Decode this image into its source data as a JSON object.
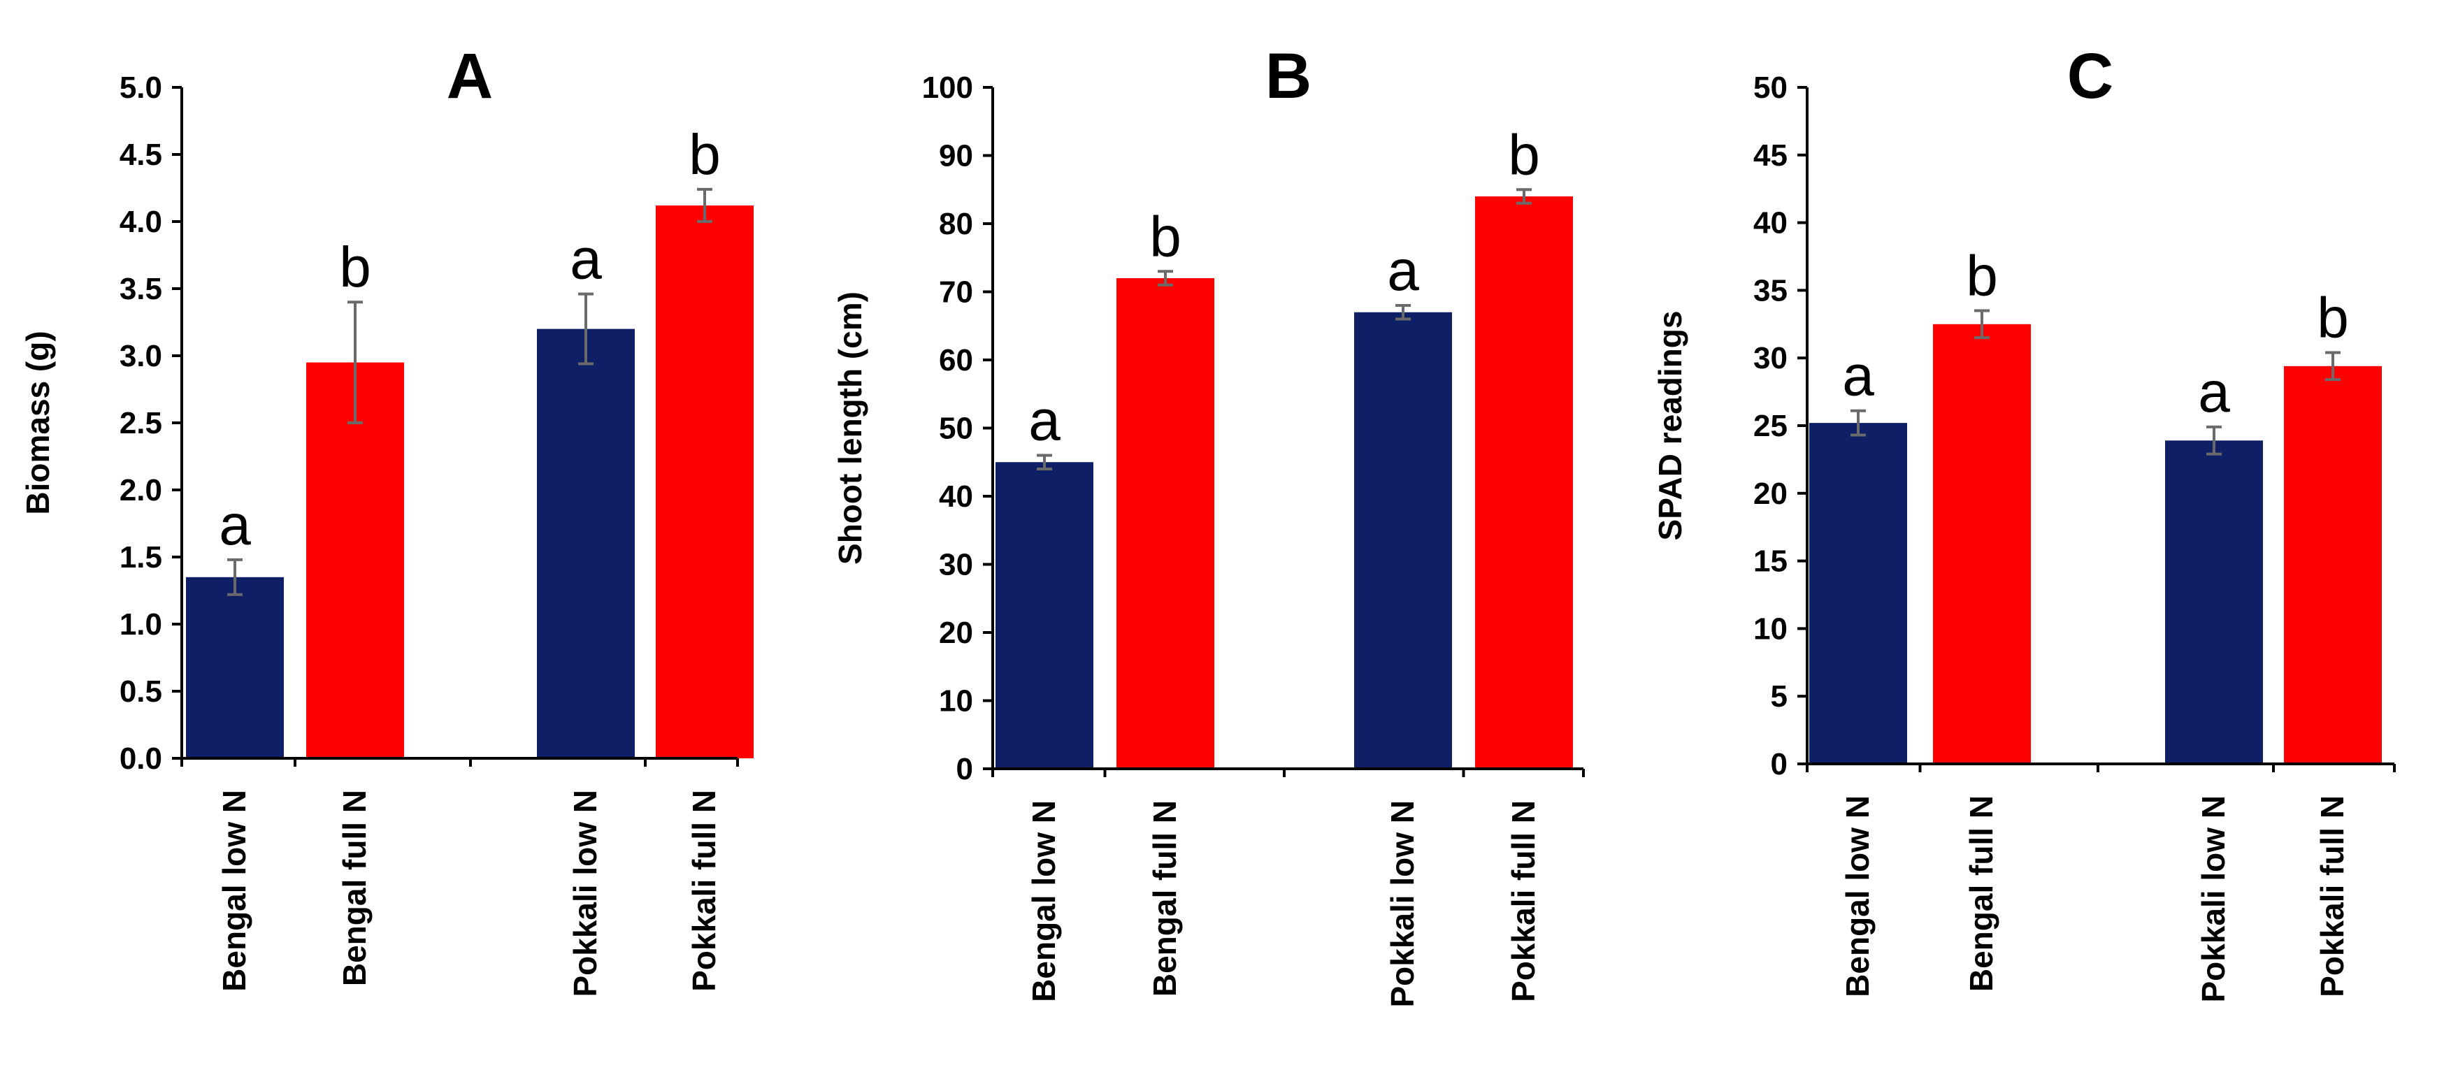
{
  "chart_data": [
    {
      "type": "bar",
      "title": "A",
      "ylabel": "Biomass (g)",
      "ylim": [
        0,
        5.0
      ],
      "yticks": [
        "0.0",
        "0.5",
        "1.0",
        "1.5",
        "2.0",
        "2.5",
        "3.0",
        "3.5",
        "4.0",
        "4.5",
        "5.0"
      ],
      "categories": [
        "Bengal low N",
        "Bengal full N",
        "Pokkali low N",
        "Pokkali full N"
      ],
      "values": [
        1.35,
        2.95,
        3.2,
        4.12
      ],
      "errors": [
        0.13,
        0.45,
        0.26,
        0.12
      ],
      "labels": [
        "a",
        "b",
        "a",
        "b"
      ],
      "colors": [
        "#0e1f66",
        "#ff0000",
        "#0e1f66",
        "#ff0000"
      ]
    },
    {
      "type": "bar",
      "title": "B",
      "ylabel": "Shoot length (cm)",
      "ylim": [
        0,
        100
      ],
      "yticks": [
        "0",
        "10",
        "20",
        "30",
        "40",
        "50",
        "60",
        "70",
        "80",
        "90",
        "100"
      ],
      "categories": [
        "Bengal low N",
        "Bengal full N",
        "Pokkali low N",
        "Pokkali full N"
      ],
      "values": [
        45,
        72,
        67,
        84
      ],
      "errors": [
        1.0,
        1.0,
        1.0,
        1.0
      ],
      "labels": [
        "a",
        "b",
        "a",
        "b"
      ],
      "colors": [
        "#0e1f66",
        "#ff0000",
        "#0e1f66",
        "#ff0000"
      ]
    },
    {
      "type": "bar",
      "title": "C",
      "ylabel": "SPAD readings",
      "ylim": [
        0,
        50
      ],
      "yticks": [
        "0",
        "5",
        "10",
        "15",
        "20",
        "25",
        "30",
        "35",
        "40",
        "45",
        "50"
      ],
      "categories": [
        "Bengal low N",
        "Bengal full N",
        "Pokkali low N",
        "Pokkali full N"
      ],
      "values": [
        25.2,
        32.5,
        23.9,
        29.4
      ],
      "errors": [
        0.9,
        1.0,
        1.0,
        1.0
      ],
      "labels": [
        "a",
        "b",
        "a",
        "b"
      ],
      "colors": [
        "#0e1f66",
        "#ff0000",
        "#0e1f66",
        "#ff0000"
      ]
    }
  ]
}
